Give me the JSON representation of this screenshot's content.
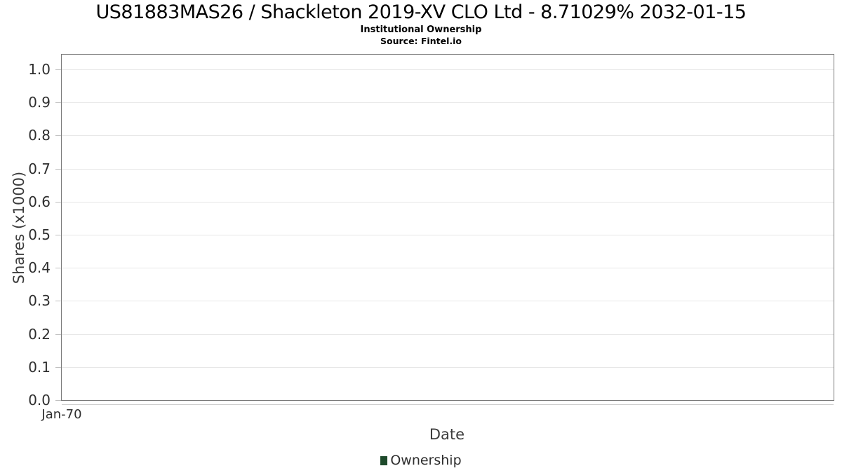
{
  "header": {
    "title": "US81883MAS26 / Shackleton 2019-XV CLO Ltd - 8.71029% 2032-01-15",
    "subtitle": "Institutional Ownership",
    "source": "Source: Fintel.io"
  },
  "chart_data": {
    "type": "line",
    "title": "US81883MAS26 / Shackleton 2019-XV CLO Ltd - 8.71029% 2032-01-15",
    "subtitle": "Institutional Ownership",
    "source": "Source: Fintel.io",
    "xlabel": "Date",
    "ylabel": "Shares (x1000)",
    "xticks": [
      "Jan-70"
    ],
    "yticks": [
      "1.0",
      "0.9",
      "0.8",
      "0.7",
      "0.6",
      "0.5",
      "0.4",
      "0.3",
      "0.2",
      "0.1",
      "0.0"
    ],
    "ylim": [
      0.0,
      1.05
    ],
    "grid": true,
    "legend_position": "bottom",
    "series": [
      {
        "name": "Ownership",
        "color": "#1e4a2b",
        "x": [],
        "values": []
      }
    ]
  },
  "legend": {
    "items": [
      {
        "label": "Ownership",
        "color": "#1e4a2b",
        "marker": "square"
      }
    ]
  },
  "colors": {
    "plot_border": "#7a7a7a",
    "gridline": "#e7e7e7",
    "tick": "#c0c0c0",
    "axis_subline": "#c9c9c9",
    "title_text": "#000000",
    "axis_label_text": "#3c3c3c",
    "tick_label_text": "#2e2e2e",
    "legend_green": "#1e4a2b",
    "background": "#ffffff"
  }
}
